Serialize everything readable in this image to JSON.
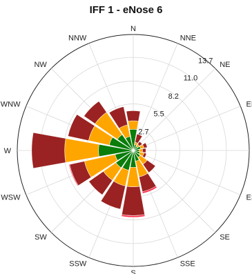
{
  "chart_data": {
    "type": "windrose",
    "title": "IFF 1 - eNose 6",
    "directions": [
      "N",
      "NNE",
      "NE",
      "ENE",
      "E",
      "ESE",
      "SE",
      "SSE",
      "S",
      "SSW",
      "SW",
      "WSW",
      "W",
      "WNW",
      "NW",
      "NNW"
    ],
    "radial_ticks": [
      "2.7",
      "5.5",
      "8.2",
      "11.0",
      "13.7"
    ],
    "radial_max": 13.7,
    "grid": true,
    "series": [
      {
        "color": "#0a7d0a",
        "values": [
          2.5,
          0.7,
          0.6,
          0.9,
          0.7,
          0.8,
          1.0,
          1.3,
          2.0,
          2.4,
          2.5,
          2.2,
          4.1,
          2.9,
          2.3,
          1.7
        ]
      },
      {
        "color": "#ffa500",
        "values": [
          3.5,
          1.0,
          0.9,
          1.3,
          1.1,
          1.3,
          2.0,
          3.2,
          4.3,
          4.3,
          4.3,
          5.9,
          8.1,
          5.4,
          5.5,
          3.1
        ]
      },
      {
        "color": "#9b2222",
        "values": [
          4.7,
          2.0,
          1.3,
          1.7,
          1.5,
          1.6,
          3.2,
          5.0,
          7.7,
          7.1,
          6.4,
          7.7,
          12.0,
          7.9,
          7.1,
          5.3
        ]
      },
      {
        "color": "#ff2a4a",
        "values": [
          4.7,
          2.0,
          1.3,
          1.7,
          1.5,
          1.6,
          3.2,
          5.2,
          7.9,
          7.1,
          6.4,
          7.8,
          12.0,
          7.9,
          7.1,
          5.3
        ]
      }
    ]
  }
}
